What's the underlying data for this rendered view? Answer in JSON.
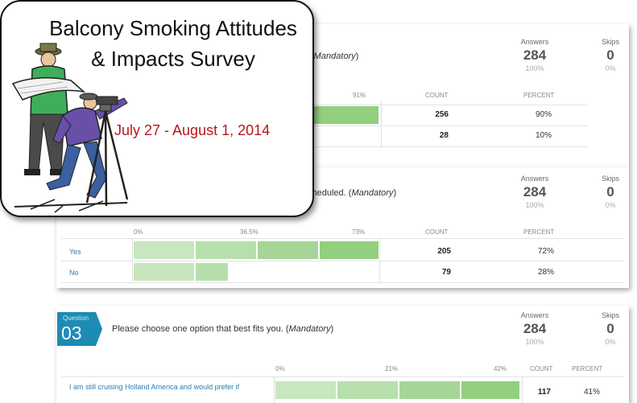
{
  "callout": {
    "title_line1": "Balcony Smoking Attitudes",
    "title_line2": "& Impacts Survey",
    "dates": "July 27 - August 1, 2014",
    "illustration": "surveyor-clipart"
  },
  "q1": {
    "text_visible": "",
    "mandatory": "Mandatory",
    "answers_label": "Answers",
    "answers_count": "284",
    "answers_pct": "100%",
    "skips_label": "Skips",
    "skips_count": "0",
    "skips_pct": "0%",
    "axis_max_label": "91%",
    "count_header": "COUNT",
    "percent_header": "PERCENT",
    "rows": [
      {
        "count": "256",
        "percent": "90%",
        "fill": 0.9
      },
      {
        "count": "28",
        "percent": "10%",
        "fill": 0.1
      }
    ]
  },
  "q2": {
    "text_visible": "cheduled.",
    "mandatory": "Mandatory",
    "answers_label": "Answers",
    "answers_count": "284",
    "answers_pct": "100%",
    "skips_label": "Skips",
    "skips_count": "0",
    "skips_pct": "0%",
    "axis_labels": [
      "0%",
      "36.5%",
      "73%"
    ],
    "count_header": "COUNT",
    "percent_header": "PERCENT",
    "rows": [
      {
        "label": "Yes",
        "count": "205",
        "percent": "72%",
        "fill": 0.72
      },
      {
        "label": "No",
        "count": "79",
        "percent": "28%",
        "fill": 0.28
      }
    ]
  },
  "q3": {
    "badge_label": "Question",
    "badge_number": "03",
    "text": "Please choose one option that best fits you.",
    "mandatory": "Mandatory",
    "answers_label": "Answers",
    "answers_count": "284",
    "answers_pct": "100%",
    "skips_label": "Skips",
    "skips_count": "0",
    "skips_pct": "0%",
    "axis_labels": [
      "0%",
      "21%",
      "42%"
    ],
    "count_header": "COUNT",
    "percent_header": "PERCENT",
    "rows": [
      {
        "label": "I am still cruising Holland America and would prefer if",
        "count": "117",
        "percent": "41%",
        "fill": 0.41
      }
    ]
  },
  "colors": {
    "bar_light": "#c8e6bf",
    "bar_mid": "#a8d89a",
    "bar_dark": "#92cf7f",
    "badge": "#1d8bb4",
    "dates": "#b8161b",
    "option_link": "#2a7db5"
  }
}
